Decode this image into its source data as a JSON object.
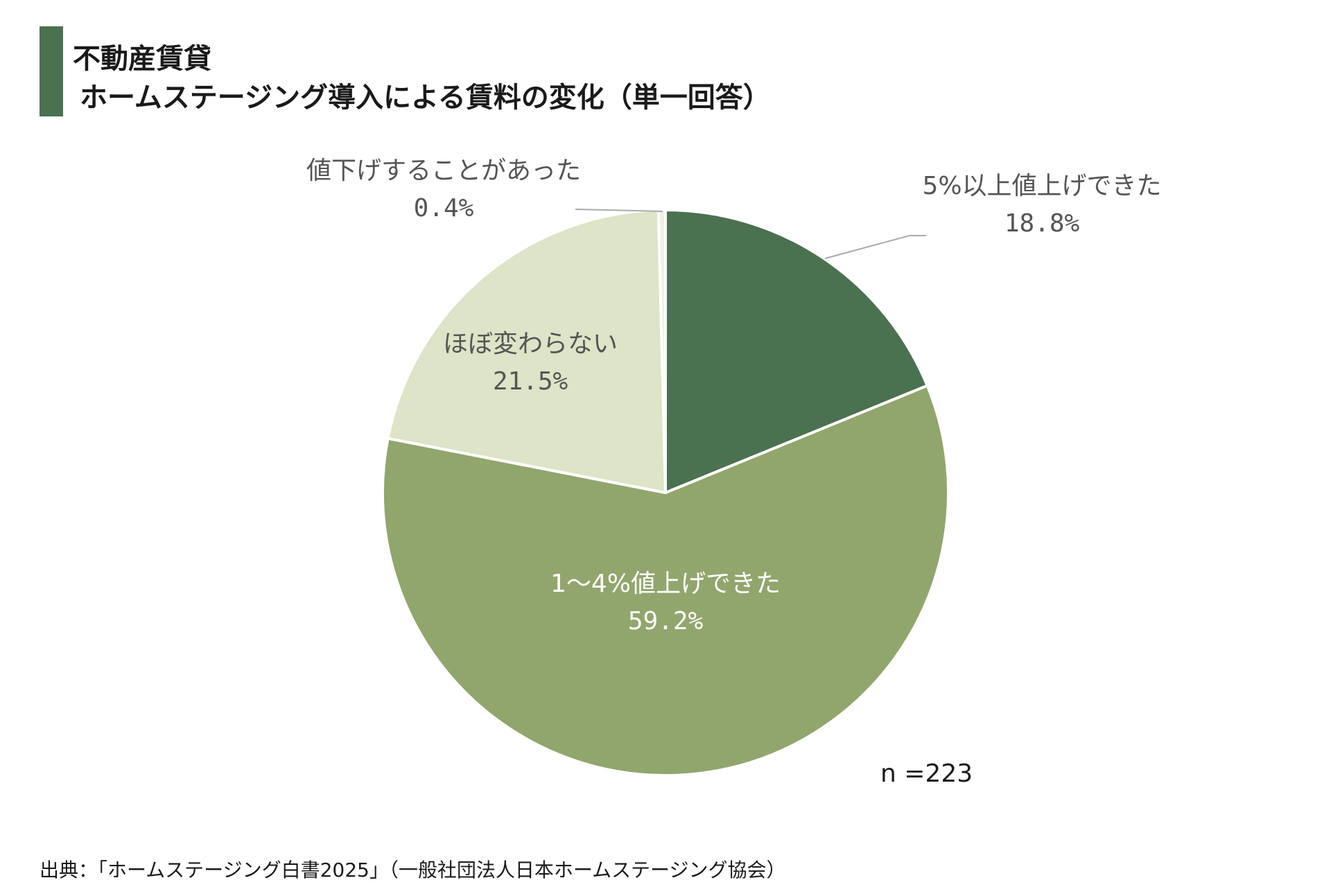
{
  "header": {
    "title_line1": "不動産賃貸",
    "title_line2": "ホームステージング導入による賃料の変化（単一回答）",
    "accent_color": "#4a7150"
  },
  "chart_data": {
    "type": "pie",
    "title": "不動産賃貸 ホームステージング導入による賃料の変化（単一回答）",
    "slices": [
      {
        "label": "5%以上値上げできた",
        "value": 18.8,
        "value_label": "18.8%",
        "color": "#4a7150"
      },
      {
        "label": "1～4%値上げできた",
        "value": 59.2,
        "value_label": "59.2%",
        "color": "#91a66c"
      },
      {
        "label": "ほぼ変わらない",
        "value": 21.5,
        "value_label": "21.5%",
        "color": "#dde4c7"
      },
      {
        "label": "値下げすることがあった",
        "value": 0.4,
        "value_label": "0.4%",
        "color": "#eef1e4"
      }
    ],
    "legend": "none"
  },
  "footer": {
    "n_label": "n =223",
    "source": "出典：「ホームステージング白書2025」（一般社団法人日本ホームステージング協会）"
  }
}
